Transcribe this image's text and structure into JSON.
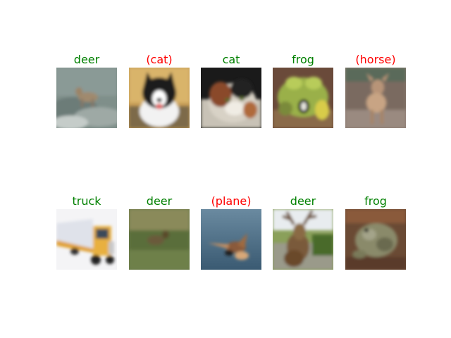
{
  "colors": {
    "correct": "#008000",
    "incorrect": "#ff0000"
  },
  "samples": [
    {
      "label": "deer",
      "correct": true
    },
    {
      "label": "(cat)",
      "correct": false
    },
    {
      "label": "cat",
      "correct": true
    },
    {
      "label": "frog",
      "correct": true
    },
    {
      "label": "(horse)",
      "correct": false
    },
    {
      "label": "truck",
      "correct": true
    },
    {
      "label": "deer",
      "correct": true
    },
    {
      "label": "(plane)",
      "correct": false
    },
    {
      "label": "deer",
      "correct": true
    },
    {
      "label": "frog",
      "correct": true
    }
  ]
}
